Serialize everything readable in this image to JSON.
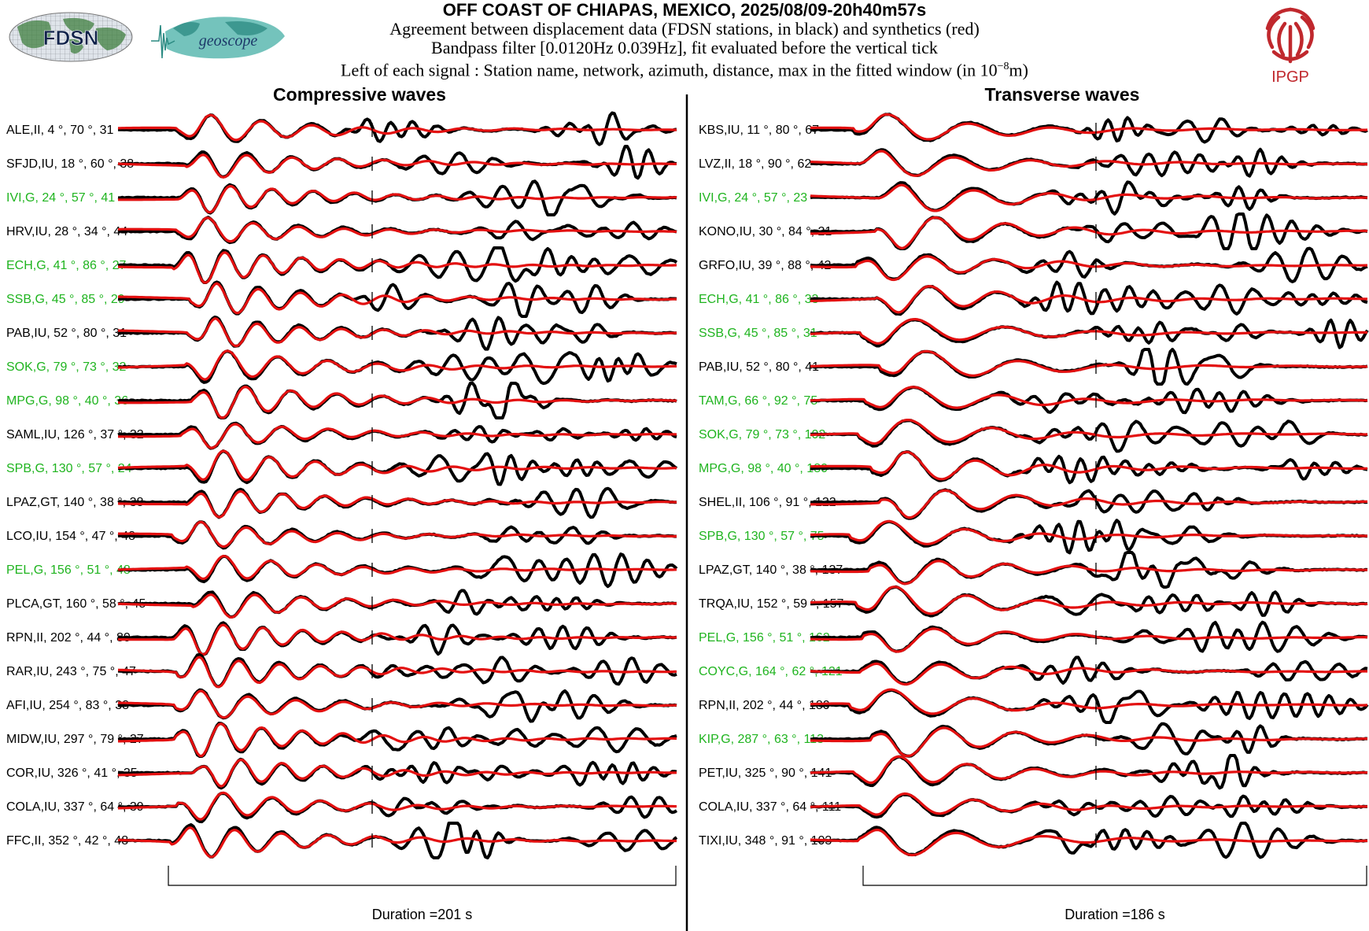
{
  "header": {
    "title": "OFF COAST OF CHIAPAS, MEXICO, 2025/08/09-20h40m57s",
    "line1": "Agreement between displacement data (FDSN stations, in black) and synthetics (red)",
    "line2": "Bandpass filter [0.0120Hz 0.039Hz], fit evaluated before the vertical tick",
    "line3_prefix": "Left of each signal : Station name, network, azimuth, distance, max in the fitted window (in 10",
    "line3_exp": "−8",
    "line3_suffix": "m)"
  },
  "logos": {
    "fdsn": "FDSN",
    "geoscope": "geoscope",
    "ipgp": "IPGP"
  },
  "colors": {
    "data": "#000000",
    "synthetic": "#e31010",
    "geoscope_label": "#1fb41f",
    "default_label": "#000000",
    "ipgp": "#c0282d"
  },
  "chart_data": [
    {
      "type": "line",
      "title": "Compressive waves",
      "xlabel": "Duration =201 s",
      "duration_s": 201,
      "series": [
        {
          "name": "data",
          "color": "#000000"
        },
        {
          "name": "synthetics",
          "color": "#e31010"
        }
      ],
      "stations": [
        {
          "label": "ALE,II, 4 °, 70 °, 31",
          "station": "ALE",
          "network": "II",
          "azimuth": 4,
          "distance": 70,
          "max": 31,
          "geoscope": false
        },
        {
          "label": "SFJD,IU, 18 °, 60 °, 38",
          "station": "SFJD",
          "network": "IU",
          "azimuth": 18,
          "distance": 60,
          "max": 38,
          "geoscope": false
        },
        {
          "label": "IVI,G, 24 °, 57 °, 41",
          "station": "IVI",
          "network": "G",
          "azimuth": 24,
          "distance": 57,
          "max": 41,
          "geoscope": true
        },
        {
          "label": "HRV,IU, 28 °, 34 °, 44",
          "station": "HRV",
          "network": "IU",
          "azimuth": 28,
          "distance": 34,
          "max": 44,
          "geoscope": false
        },
        {
          "label": "ECH,G, 41 °, 86 °, 27",
          "station": "ECH",
          "network": "G",
          "azimuth": 41,
          "distance": 86,
          "max": 27,
          "geoscope": true
        },
        {
          "label": "SSB,G, 45 °, 85 °, 29",
          "station": "SSB",
          "network": "G",
          "azimuth": 45,
          "distance": 85,
          "max": 29,
          "geoscope": true
        },
        {
          "label": "PAB,IU, 52 °, 80 °, 31",
          "station": "PAB",
          "network": "IU",
          "azimuth": 52,
          "distance": 80,
          "max": 31,
          "geoscope": false
        },
        {
          "label": "SOK,G, 79 °, 73 °, 32",
          "station": "SOK",
          "network": "G",
          "azimuth": 79,
          "distance": 73,
          "max": 32,
          "geoscope": true
        },
        {
          "label": "MPG,G, 98 °, 40 °, 36",
          "station": "MPG",
          "network": "G",
          "azimuth": 98,
          "distance": 40,
          "max": 36,
          "geoscope": true
        },
        {
          "label": "SAML,IU, 126 °, 37 °, 32",
          "station": "SAML",
          "network": "IU",
          "azimuth": 126,
          "distance": 37,
          "max": 32,
          "geoscope": false
        },
        {
          "label": "SPB,G, 130 °, 57 °, 24",
          "station": "SPB",
          "network": "G",
          "azimuth": 130,
          "distance": 57,
          "max": 24,
          "geoscope": true
        },
        {
          "label": "LPAZ,GT, 140 °, 38 °, 38",
          "station": "LPAZ",
          "network": "GT",
          "azimuth": 140,
          "distance": 38,
          "max": 38,
          "geoscope": false
        },
        {
          "label": "LCO,IU, 154 °, 47 °, 48",
          "station": "LCO",
          "network": "IU",
          "azimuth": 154,
          "distance": 47,
          "max": 48,
          "geoscope": false
        },
        {
          "label": "PEL,G, 156 °, 51 °, 48",
          "station": "PEL",
          "network": "G",
          "azimuth": 156,
          "distance": 51,
          "max": 48,
          "geoscope": true
        },
        {
          "label": "PLCA,GT, 160 °, 58 °, 45",
          "station": "PLCA",
          "network": "GT",
          "azimuth": 160,
          "distance": 58,
          "max": 45,
          "geoscope": false
        },
        {
          "label": "RPN,II, 202 °, 44 °, 80",
          "station": "RPN",
          "network": "II",
          "azimuth": 202,
          "distance": 44,
          "max": 80,
          "geoscope": false
        },
        {
          "label": "RAR,IU, 243 °, 75 °, 47",
          "station": "RAR",
          "network": "IU",
          "azimuth": 243,
          "distance": 75,
          "max": 47,
          "geoscope": false
        },
        {
          "label": "AFI,IU, 254 °, 83 °, 38",
          "station": "AFI",
          "network": "IU",
          "azimuth": 254,
          "distance": 83,
          "max": 38,
          "geoscope": false
        },
        {
          "label": "MIDW,IU, 297 °, 79 °, 27",
          "station": "MIDW",
          "network": "IU",
          "azimuth": 297,
          "distance": 79,
          "max": 27,
          "geoscope": false
        },
        {
          "label": "COR,IU, 326 °, 41 °, 35",
          "station": "COR",
          "network": "IU",
          "azimuth": 326,
          "distance": 41,
          "max": 35,
          "geoscope": false
        },
        {
          "label": "COLA,IU, 337 °, 64 °, 39",
          "station": "COLA",
          "network": "IU",
          "azimuth": 337,
          "distance": 64,
          "max": 39,
          "geoscope": false
        },
        {
          "label": "FFC,II, 352 °, 42 °, 48",
          "station": "FFC",
          "network": "II",
          "azimuth": 352,
          "distance": 42,
          "max": 48,
          "geoscope": false
        }
      ]
    },
    {
      "type": "line",
      "title": "Transverse waves",
      "xlabel": "Duration =186 s",
      "duration_s": 186,
      "series": [
        {
          "name": "data",
          "color": "#000000"
        },
        {
          "name": "synthetics",
          "color": "#e31010"
        }
      ],
      "stations": [
        {
          "label": "KBS,IU, 11 °, 80 °, 67",
          "station": "KBS",
          "network": "IU",
          "azimuth": 11,
          "distance": 80,
          "max": 67,
          "geoscope": false
        },
        {
          "label": "LVZ,II, 18 °, 90 °, 62",
          "station": "LVZ",
          "network": "II",
          "azimuth": 18,
          "distance": 90,
          "max": 62,
          "geoscope": false
        },
        {
          "label": "IVI,G, 24 °, 57 °, 23",
          "station": "IVI",
          "network": "G",
          "azimuth": 24,
          "distance": 57,
          "max": 23,
          "geoscope": true
        },
        {
          "label": "KONO,IU, 30 °, 84 °, 21",
          "station": "KONO",
          "network": "IU",
          "azimuth": 30,
          "distance": 84,
          "max": 21,
          "geoscope": false
        },
        {
          "label": "GRFO,IU, 39 °, 88 °, 42",
          "station": "GRFO",
          "network": "IU",
          "azimuth": 39,
          "distance": 88,
          "max": 42,
          "geoscope": false
        },
        {
          "label": "ECH,G, 41 °, 86 °, 33",
          "station": "ECH",
          "network": "G",
          "azimuth": 41,
          "distance": 86,
          "max": 33,
          "geoscope": true
        },
        {
          "label": "SSB,G, 45 °, 85 °, 31",
          "station": "SSB",
          "network": "G",
          "azimuth": 45,
          "distance": 85,
          "max": 31,
          "geoscope": true
        },
        {
          "label": "PAB,IU, 52 °, 80 °, 41",
          "station": "PAB",
          "network": "IU",
          "azimuth": 52,
          "distance": 80,
          "max": 41,
          "geoscope": false
        },
        {
          "label": "TAM,G, 66 °, 92 °, 75",
          "station": "TAM",
          "network": "G",
          "azimuth": 66,
          "distance": 92,
          "max": 75,
          "geoscope": true
        },
        {
          "label": "SOK,G, 79 °, 73 °, 102",
          "station": "SOK",
          "network": "G",
          "azimuth": 79,
          "distance": 73,
          "max": 102,
          "geoscope": true
        },
        {
          "label": "MPG,G, 98 °, 40 °, 180",
          "station": "MPG",
          "network": "G",
          "azimuth": 98,
          "distance": 40,
          "max": 180,
          "geoscope": true
        },
        {
          "label": "SHEL,II, 106 °, 91 °, 122",
          "station": "SHEL",
          "network": "II",
          "azimuth": 106,
          "distance": 91,
          "max": 122,
          "geoscope": false
        },
        {
          "label": "SPB,G, 130 °, 57 °, 75",
          "station": "SPB",
          "network": "G",
          "azimuth": 130,
          "distance": 57,
          "max": 75,
          "geoscope": true
        },
        {
          "label": "LPAZ,GT, 140 °, 38 °, 137",
          "station": "LPAZ",
          "network": "GT",
          "azimuth": 140,
          "distance": 38,
          "max": 137,
          "geoscope": false
        },
        {
          "label": "TRQA,IU, 152 °, 59 °, 157",
          "station": "TRQA",
          "network": "IU",
          "azimuth": 152,
          "distance": 59,
          "max": 157,
          "geoscope": false
        },
        {
          "label": "PEL,G, 156 °, 51 °, 162",
          "station": "PEL",
          "network": "G",
          "azimuth": 156,
          "distance": 51,
          "max": 162,
          "geoscope": true
        },
        {
          "label": "COYC,G, 164 °, 62 °, 121",
          "station": "COYC",
          "network": "G",
          "azimuth": 164,
          "distance": 62,
          "max": 121,
          "geoscope": true
        },
        {
          "label": "RPN,II, 202 °, 44 °, 180",
          "station": "RPN",
          "network": "II",
          "azimuth": 202,
          "distance": 44,
          "max": 180,
          "geoscope": false
        },
        {
          "label": "KIP,G, 287 °, 63 °, 113",
          "station": "KIP",
          "network": "G",
          "azimuth": 287,
          "distance": 63,
          "max": 113,
          "geoscope": true
        },
        {
          "label": "PET,IU, 325 °, 90 °, 141",
          "station": "PET",
          "network": "IU",
          "azimuth": 325,
          "distance": 90,
          "max": 141,
          "geoscope": false
        },
        {
          "label": "COLA,IU, 337 °, 64 °, 111",
          "station": "COLA",
          "network": "IU",
          "azimuth": 337,
          "distance": 64,
          "max": 111,
          "geoscope": false
        },
        {
          "label": "TIXI,IU, 348 °, 91 °, 103",
          "station": "TIXI",
          "network": "IU",
          "azimuth": 348,
          "distance": 91,
          "max": 103,
          "geoscope": false
        }
      ]
    }
  ]
}
